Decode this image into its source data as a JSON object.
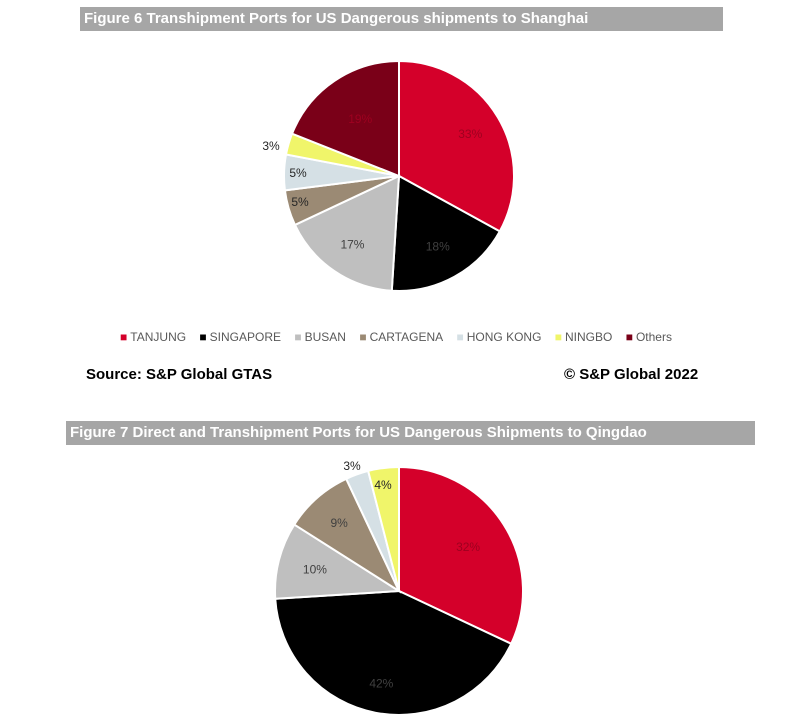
{
  "figure6": {
    "title": "Figure 6 Transhipment Ports for US Dangerous shipments to Shanghai",
    "source": "Source: S&P Global GTAS",
    "copyright": "©  S&P Global 2022"
  },
  "figure7": {
    "title": "Figure 7 Direct and Transhipment Ports for US Dangerous Shipments to Qingdao"
  },
  "legend": [
    {
      "label": "TANJUNG",
      "color": "#d4002a"
    },
    {
      "label": "SINGAPORE",
      "color": "#000000"
    },
    {
      "label": "BUSAN",
      "color": "#bfbfbf"
    },
    {
      "label": "CARTAGENA",
      "color": "#9b8a74"
    },
    {
      "label": "HONG KONG",
      "color": "#d5e0e5"
    },
    {
      "label": "NINGBO",
      "color": "#f0f56a"
    },
    {
      "label": "Others",
      "color": "#7a0018"
    }
  ],
  "chart_data": [
    {
      "type": "pie",
      "title": "Figure 6 Transhipment Ports for US Dangerous shipments to Shanghai",
      "categories": [
        "TANJUNG",
        "SINGAPORE",
        "BUSAN",
        "CARTAGENA",
        "HONG KONG",
        "NINGBO",
        "Others"
      ],
      "values": [
        33,
        18,
        17,
        5,
        5,
        3,
        19
      ],
      "labels": [
        "33%",
        "18%",
        "17%",
        "5%",
        "5%",
        "3%",
        "19%"
      ],
      "colors": [
        "#d4002a",
        "#000000",
        "#bfbfbf",
        "#9b8a74",
        "#d5e0e5",
        "#f0f56a",
        "#7a0018"
      ],
      "label_colors": [
        "#9e0020",
        "#404040",
        "#404040",
        "#404040",
        "#404040",
        "#404040",
        "#9e0020"
      ],
      "legend_position": "bottom"
    },
    {
      "type": "pie",
      "title": "Figure 7 Direct and Transhipment Ports for US Dangerous Shipments to Qingdao",
      "categories": [
        "TANJUNG",
        "SINGAPORE",
        "BUSAN",
        "CARTAGENA",
        "HONG KONG",
        "NINGBO"
      ],
      "values": [
        32,
        42,
        10,
        9,
        3,
        4
      ],
      "labels": [
        "32%",
        "42%",
        "10%",
        "9%",
        "3%",
        "4%"
      ],
      "colors": [
        "#d4002a",
        "#000000",
        "#bfbfbf",
        "#9b8a74",
        "#d5e0e5",
        "#f0f56a"
      ],
      "label_colors": [
        "#9e0020",
        "#404040",
        "#404040",
        "#404040",
        "#404040",
        "#404040"
      ]
    }
  ]
}
